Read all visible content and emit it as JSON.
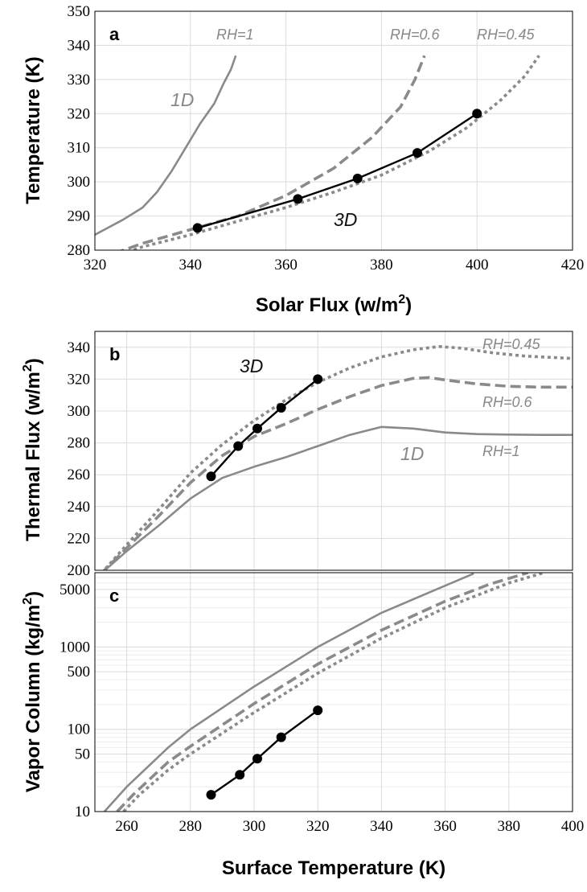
{
  "colors": {
    "gray_curve": "#8a8a8a",
    "black_curve": "#000000",
    "grid": "#dcdcdc",
    "grid_minor": "#ededed"
  },
  "chart_data": [
    {
      "type": "line",
      "panel": "a",
      "xlabel": "Solar Flux",
      "xlabel_unit": "(w/m",
      "xlabel_sup": "2",
      "xlabel_close": ")",
      "ylabel": "Temperature (K)",
      "xlim": [
        320,
        420
      ],
      "ylim": [
        280,
        350
      ],
      "xticks": [
        320,
        340,
        360,
        380,
        400,
        420
      ],
      "yticks": [
        280,
        290,
        300,
        310,
        320,
        330,
        340,
        350
      ],
      "annotations": {
        "rh1": "RH=1",
        "rh06": "RH=0.6",
        "rh045": "RH=0.45",
        "oned": "1D",
        "threed": "3D"
      },
      "series": [
        {
          "name": "RH=1",
          "style": "solid",
          "x": [
            318,
            322,
            326,
            330,
            333,
            336,
            339,
            342,
            345,
            347,
            348.5,
            349.5
          ],
          "y": [
            283,
            286,
            289,
            292.5,
            297,
            303,
            310,
            317,
            323,
            329,
            333,
            337
          ]
        },
        {
          "name": "RH=0.6",
          "style": "dashed",
          "x": [
            318,
            330,
            340,
            350,
            360,
            370,
            378,
            384,
            387,
            389
          ],
          "y": [
            276,
            282,
            286,
            290,
            296,
            304,
            313,
            322,
            330,
            337
          ]
        },
        {
          "name": "RH=0.45",
          "style": "dotted",
          "x": [
            318,
            330,
            340,
            350,
            360,
            370,
            380,
            390,
            398,
            405,
            410,
            413
          ],
          "y": [
            275,
            281,
            284.5,
            288.5,
            292.5,
            297,
            302,
            309,
            316,
            324,
            331,
            337
          ]
        },
        {
          "name": "3D",
          "style": "markers",
          "x": [
            341.5,
            362.5,
            375,
            387.5,
            400
          ],
          "y": [
            286.5,
            295,
            301,
            308.5,
            320
          ]
        }
      ]
    },
    {
      "type": "line",
      "panel": "b",
      "xlabel": "",
      "ylabel": "Thermal Flux",
      "ylabel_unit": "(w/m",
      "ylabel_sup": "2",
      "ylabel_close": ")",
      "xlim": [
        250,
        400
      ],
      "ylim": [
        200,
        350
      ],
      "xgrid": [
        260,
        280,
        300,
        320,
        340,
        360,
        380,
        400
      ],
      "yticks": [
        200,
        220,
        240,
        260,
        280,
        300,
        320,
        340
      ],
      "annotations": {
        "rh045": "RH=0.45",
        "rh06": "RH=0.6",
        "rh1": "RH=1",
        "oned": "1D",
        "threed": "3D"
      },
      "series": [
        {
          "name": "RH=1",
          "style": "solid",
          "x": [
            252,
            260,
            270,
            280,
            290,
            300,
            310,
            320,
            330,
            340,
            350,
            360,
            370,
            380,
            390,
            400
          ],
          "y": [
            198,
            212,
            228,
            245,
            258,
            265,
            271,
            278,
            285,
            290,
            289,
            286.5,
            285.5,
            285.2,
            285,
            285
          ]
        },
        {
          "name": "RH=0.6",
          "style": "dashed",
          "x": [
            252,
            260,
            270,
            280,
            290,
            300,
            310,
            320,
            330,
            340,
            350,
            355,
            360,
            370,
            380,
            390,
            400
          ],
          "y": [
            198,
            214,
            234,
            255,
            272,
            284,
            292,
            301,
            309,
            316,
            320.5,
            321,
            319.5,
            317,
            315.5,
            315,
            315
          ]
        },
        {
          "name": "RH=0.45",
          "style": "dotted",
          "x": [
            252,
            260,
            270,
            280,
            290,
            300,
            310,
            320,
            330,
            340,
            350,
            358,
            365,
            375,
            385,
            400
          ],
          "y": [
            198,
            216,
            238,
            261,
            279,
            294,
            307,
            318,
            327,
            334,
            338.5,
            340.5,
            339.5,
            336.5,
            334.5,
            333
          ]
        },
        {
          "name": "3D",
          "style": "markers",
          "x": [
            286.5,
            295,
            301,
            308.5,
            320
          ],
          "y": [
            259,
            278,
            289,
            302,
            320
          ]
        }
      ]
    },
    {
      "type": "line",
      "panel": "c",
      "xlabel": "Surface Temperature (K)",
      "ylabel": "Vapor Column",
      "ylabel_unit": "(kg/m",
      "ylabel_sup": "2",
      "ylabel_close": ")",
      "yscale": "log",
      "xlim": [
        250,
        400
      ],
      "ylim": [
        10,
        8000
      ],
      "xticks": [
        260,
        280,
        300,
        320,
        340,
        360,
        380,
        400
      ],
      "yticks": [
        10,
        50,
        100,
        500,
        1000,
        5000
      ],
      "ytick_labels": [
        "10",
        "50",
        "100",
        "500",
        "1000",
        "5000"
      ],
      "series": [
        {
          "name": "RH=1",
          "style": "solid",
          "x": [
            253,
            260,
            273,
            280,
            300,
            320,
            340,
            355,
            369
          ],
          "y": [
            10,
            20,
            60,
            100,
            330,
            1000,
            2600,
            4600,
            7800
          ]
        },
        {
          "name": "RH=0.6",
          "style": "dashed",
          "x": [
            257,
            262,
            273,
            280,
            300,
            320,
            340,
            360,
            374,
            386
          ],
          "y": [
            10,
            16,
            40,
            62,
            205,
            620,
            1600,
            3600,
            5800,
            8000
          ]
        },
        {
          "name": "RH=0.45",
          "style": "dotted",
          "x": [
            259,
            264,
            273,
            280,
            300,
            320,
            340,
            360,
            380,
            391
          ],
          "y": [
            10,
            16,
            32,
            50,
            160,
            480,
            1280,
            3000,
            6000,
            8000
          ]
        },
        {
          "name": "3D",
          "style": "markers",
          "x": [
            286.5,
            295.5,
            301,
            308.5,
            320
          ],
          "y": [
            16,
            28,
            44,
            80,
            170
          ]
        }
      ]
    }
  ]
}
